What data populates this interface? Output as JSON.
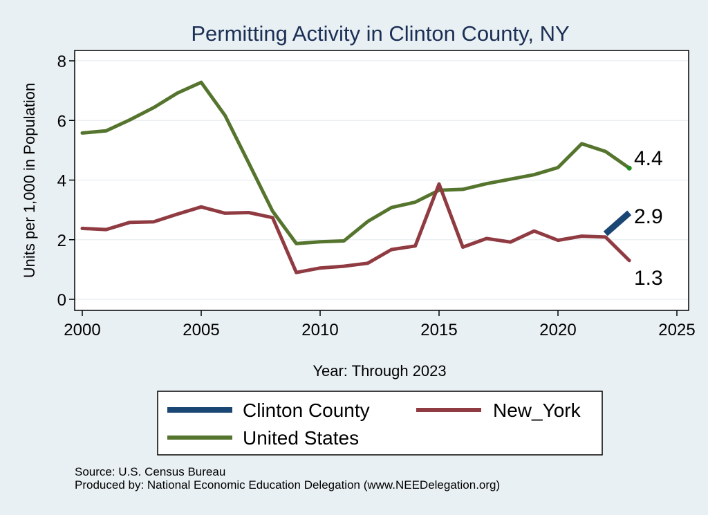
{
  "chart_data": {
    "type": "line",
    "title": "Permitting Activity in Clinton County, NY",
    "xlabel": "Year: Through 2023",
    "ylabel": "Units per 1,000 in Population",
    "xlim": [
      2000,
      2025
    ],
    "ylim": [
      0,
      8
    ],
    "x_ticks": [
      "2000",
      "2005",
      "2010",
      "2015",
      "2020",
      "2025"
    ],
    "y_ticks": [
      "0",
      "2",
      "4",
      "6",
      "8"
    ],
    "grid": true,
    "legend_position": "bottom",
    "series": [
      {
        "name": "Clinton County",
        "color": "#1a4673",
        "x": [
          2022,
          2023
        ],
        "values": [
          2.2,
          2.9
        ],
        "end_label": "2.9"
      },
      {
        "name": "New_York",
        "color": "#903b42",
        "x": [
          2000,
          2001,
          2002,
          2003,
          2004,
          2005,
          2006,
          2007,
          2008,
          2009,
          2010,
          2011,
          2012,
          2013,
          2014,
          2015,
          2016,
          2017,
          2018,
          2019,
          2020,
          2021,
          2022,
          2023
        ],
        "values": [
          2.38,
          2.34,
          2.58,
          2.6,
          2.86,
          3.1,
          2.89,
          2.91,
          2.74,
          0.9,
          1.05,
          1.11,
          1.21,
          1.67,
          1.79,
          3.87,
          1.75,
          2.04,
          1.92,
          2.29,
          1.98,
          2.12,
          2.09,
          1.3
        ],
        "end_label": "1.3"
      },
      {
        "name": "United States",
        "color": "#55752e",
        "x": [
          2000,
          2001,
          2002,
          2003,
          2004,
          2005,
          2006,
          2007,
          2008,
          2009,
          2010,
          2011,
          2012,
          2013,
          2014,
          2015,
          2016,
          2017,
          2018,
          2019,
          2020,
          2021,
          2022,
          2023
        ],
        "values": [
          5.58,
          5.65,
          6.02,
          6.43,
          6.92,
          7.28,
          6.17,
          4.57,
          2.96,
          1.87,
          1.93,
          1.96,
          2.61,
          3.08,
          3.26,
          3.66,
          3.69,
          3.88,
          4.03,
          4.18,
          4.42,
          5.22,
          4.96,
          4.4
        ],
        "end_label": "4.4"
      }
    ]
  },
  "legend": {
    "items": [
      {
        "label": "Clinton County",
        "color": "#1a4673"
      },
      {
        "label": "New_York",
        "color": "#903b42"
      },
      {
        "label": "United States",
        "color": "#55752e"
      }
    ]
  },
  "footer": {
    "source": "Source: U.S. Census Bureau",
    "produced_by": "Produced by: National Economic Education Delegation (www.NEEDelegation.org)"
  }
}
